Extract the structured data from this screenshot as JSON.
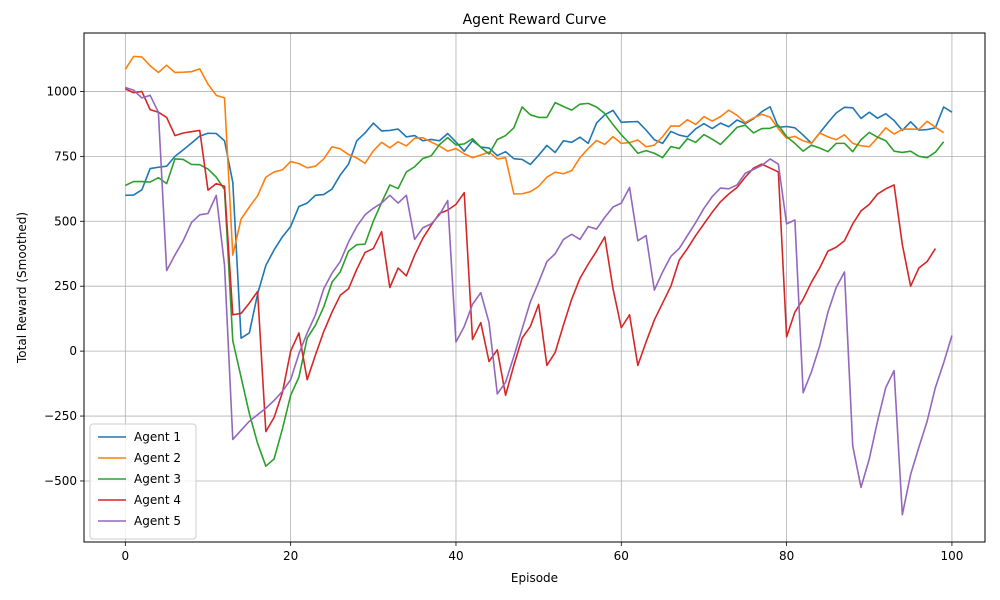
{
  "chart_data": {
    "type": "line",
    "title": "Agent Reward Curve",
    "xlabel": "Episode",
    "ylabel": "Total Reward (Smoothed)",
    "xlim": [
      -5,
      104
    ],
    "ylim": [
      -735,
      1225
    ],
    "xticks": [
      0,
      20,
      40,
      60,
      80,
      100
    ],
    "yticks": [
      -500,
      -250,
      0,
      250,
      500,
      750,
      1000
    ],
    "grid": true,
    "legend_position": "lower-left",
    "series": [
      {
        "name": "Agent 1",
        "color": "#1f77b4",
        "values": [
          600,
          601,
          621,
          703,
          708,
          712,
          750,
          775,
          801,
          828,
          839,
          838,
          810,
          650,
          50,
          70,
          220,
          330,
          390,
          440,
          480,
          557,
          570,
          600,
          603,
          624,
          678,
          720,
          810,
          840,
          878,
          848,
          850,
          855,
          825,
          830,
          810,
          815,
          810,
          838,
          805,
          770,
          810,
          786,
          782,
          753,
          768,
          741,
          738,
          719,
          754,
          792,
          765,
          810,
          804,
          824,
          800,
          878,
          910,
          927,
          881,
          883,
          884,
          851,
          814,
          800,
          846,
          832,
          825,
          856,
          876,
          857,
          878,
          864,
          890,
          876,
          895,
          922,
          941,
          862,
          865,
          860,
          832,
          800,
          840,
          880,
          917,
          939,
          937,
          896,
          920,
          897,
          914,
          888,
          850,
          883,
          851,
          853,
          860,
          940,
          920
        ]
      },
      {
        "name": "Agent 2",
        "color": "#ff7f0e",
        "values": [
          1085,
          1135,
          1133,
          1099,
          1073,
          1101,
          1073,
          1074,
          1076,
          1087,
          1028,
          985,
          975,
          370,
          508,
          555,
          598,
          670,
          690,
          698,
          730,
          722,
          706,
          712,
          740,
          787,
          779,
          757,
          744,
          723,
          771,
          804,
          783,
          806,
          790,
          820,
          822,
          805,
          790,
          770,
          780,
          760,
          745,
          755,
          767,
          740,
          745,
          605,
          606,
          614,
          634,
          670,
          689,
          683,
          695,
          745,
          780,
          811,
          796,
          826,
          800,
          803,
          813,
          787,
          793,
          826,
          867,
          866,
          891,
          873,
          903,
          886,
          903,
          928,
          908,
          880,
          898,
          912,
          901,
          857,
          820,
          827,
          810,
          800,
          840,
          825,
          814,
          833,
          800,
          791,
          787,
          822,
          860,
          836,
          854,
          855,
          854,
          885,
          862,
          841
        ]
      },
      {
        "name": "Agent 3",
        "color": "#2ca02c",
        "values": [
          638,
          653,
          653,
          651,
          668,
          645,
          740,
          738,
          719,
          718,
          701,
          670,
          622,
          40,
          -100,
          -240,
          -355,
          -443,
          -415,
          -300,
          -170,
          -100,
          50,
          100,
          170,
          265,
          305,
          385,
          410,
          412,
          500,
          572,
          640,
          626,
          690,
          710,
          742,
          752,
          795,
          822,
          794,
          798,
          818,
          785,
          759,
          815,
          830,
          860,
          940,
          910,
          900,
          900,
          957,
          942,
          928,
          951,
          954,
          940,
          915,
          872,
          833,
          800,
          762,
          772,
          762,
          745,
          788,
          780,
          818,
          804,
          834,
          816,
          796,
          828,
          862,
          870,
          840,
          857,
          858,
          870,
          826,
          800,
          770,
          793,
          782,
          768,
          800,
          800,
          768,
          814,
          842,
          824,
          810,
          770,
          765,
          770,
          750,
          745,
          766,
          806
        ]
      },
      {
        "name": "Agent 4",
        "color": "#d62728",
        "values": [
          1010,
          995,
          1000,
          930,
          920,
          900,
          830,
          840,
          845,
          850,
          620,
          645,
          635,
          140,
          145,
          185,
          230,
          -310,
          -255,
          -160,
          0,
          70,
          -110,
          -15,
          75,
          150,
          215,
          240,
          315,
          380,
          395,
          460,
          245,
          320,
          290,
          370,
          435,
          485,
          530,
          543,
          565,
          610,
          45,
          110,
          -40,
          5,
          -170,
          -55,
          50,
          95,
          180,
          -55,
          -5,
          100,
          200,
          280,
          335,
          385,
          440,
          240,
          90,
          140,
          -55,
          35,
          120,
          185,
          250,
          350,
          395,
          445,
          490,
          535,
          575,
          605,
          630,
          670,
          705,
          720,
          705,
          690,
          55,
          150,
          200,
          265,
          320,
          385,
          400,
          425,
          490,
          540,
          565,
          605,
          625,
          640,
          410,
          250,
          320,
          345,
          395
        ]
      },
      {
        "name": "Agent 5",
        "color": "#9467bd",
        "values": [
          1015,
          1005,
          975,
          985,
          920,
          310,
          370,
          425,
          495,
          525,
          530,
          600,
          330,
          -340,
          -305,
          -270,
          -245,
          -220,
          -190,
          -155,
          -110,
          -10,
          70,
          140,
          240,
          300,
          345,
          420,
          480,
          525,
          550,
          570,
          600,
          570,
          600,
          430,
          475,
          490,
          525,
          580,
          35,
          95,
          180,
          225,
          110,
          -165,
          -120,
          -20,
          85,
          190,
          265,
          345,
          375,
          430,
          450,
          430,
          480,
          470,
          515,
          555,
          570,
          630,
          425,
          445,
          235,
          305,
          365,
          395,
          445,
          495,
          550,
          595,
          628,
          625,
          640,
          685,
          700,
          715,
          740,
          720,
          490,
          505,
          -160,
          -80,
          20,
          150,
          245,
          305,
          -365,
          -525,
          -415,
          -270,
          -140,
          -75,
          -630,
          -475,
          -370,
          -270,
          -140,
          -45,
          60
        ]
      }
    ]
  }
}
